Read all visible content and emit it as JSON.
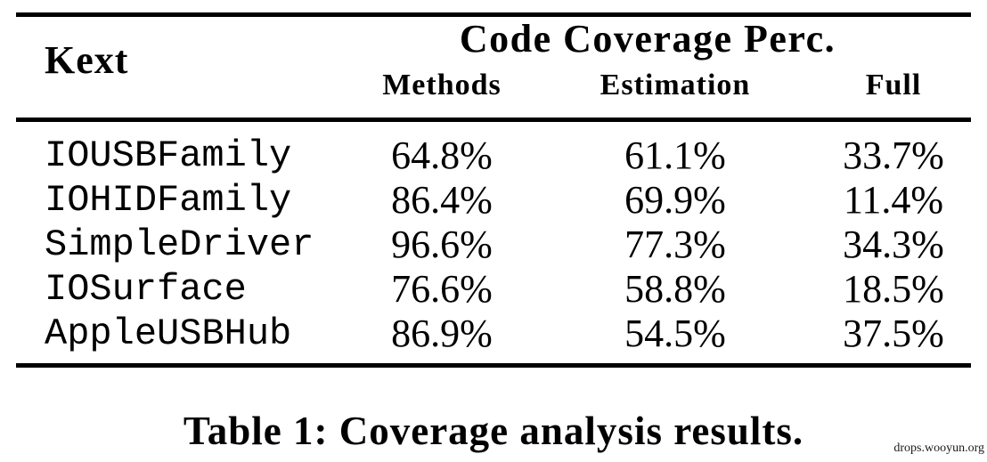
{
  "colors": {
    "background": "#ffffff",
    "text": "#000000",
    "rule": "#000000"
  },
  "table": {
    "kext_header": "Kext",
    "group_header": "Code Coverage Perc.",
    "sub_headers": [
      "Methods",
      "Estimation",
      "Full"
    ],
    "rows": [
      {
        "kext": "IOUSBFamily",
        "methods": "64.8%",
        "estimation": "61.1%",
        "full": "33.7%"
      },
      {
        "kext": "IOHIDFamily",
        "methods": "86.4%",
        "estimation": "69.9%",
        "full": "11.4%"
      },
      {
        "kext": "SimpleDriver",
        "methods": "96.6%",
        "estimation": "77.3%",
        "full": "34.3%"
      },
      {
        "kext": "IOSurface",
        "methods": "76.6%",
        "estimation": "58.8%",
        "full": "18.5%"
      },
      {
        "kext": "AppleUSBHub",
        "methods": "86.9%",
        "estimation": "54.5%",
        "full": "37.5%"
      }
    ]
  },
  "caption": "Table 1: Coverage analysis results.",
  "watermark": "drops.wooyun.org"
}
